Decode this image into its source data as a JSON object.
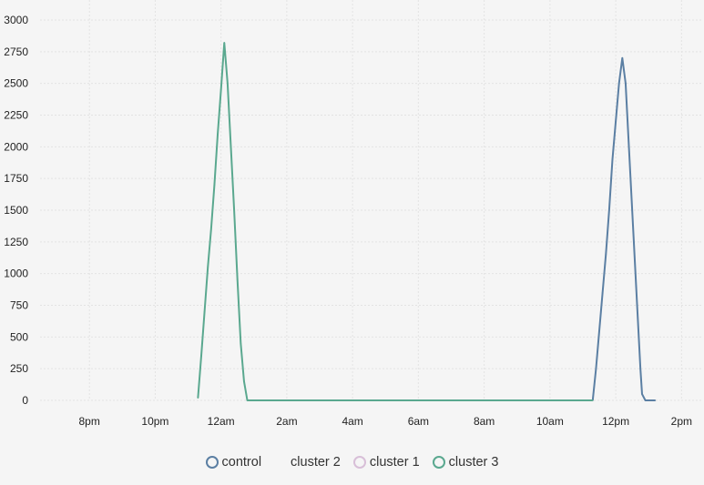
{
  "chart_data": {
    "type": "line",
    "title": "",
    "xlabel": "",
    "ylabel": "",
    "x_unit": "hour",
    "xlim": [
      18.5,
      38.6
    ],
    "ylim": [
      0,
      3000
    ],
    "grid": true,
    "legend_position": "bottom",
    "y_ticks": [
      0,
      250,
      500,
      750,
      1000,
      1250,
      1500,
      1750,
      2000,
      2250,
      2500,
      2750,
      3000
    ],
    "x_ticks": [
      {
        "value": 20,
        "label": "8pm"
      },
      {
        "value": 22,
        "label": "10pm"
      },
      {
        "value": 24,
        "label": "12am"
      },
      {
        "value": 26,
        "label": "2am"
      },
      {
        "value": 28,
        "label": "4am"
      },
      {
        "value": 30,
        "label": "6am"
      },
      {
        "value": 32,
        "label": "8am"
      },
      {
        "value": 34,
        "label": "10am"
      },
      {
        "value": 36,
        "label": "12pm"
      },
      {
        "value": 38,
        "label": "2pm"
      }
    ],
    "series": [
      {
        "name": "control",
        "color": "#5b7fa3",
        "points": [
          [
            35.3,
            0
          ],
          [
            35.4,
            250
          ],
          [
            35.5,
            550
          ],
          [
            35.6,
            850
          ],
          [
            35.7,
            1150
          ],
          [
            35.8,
            1500
          ],
          [
            35.9,
            1900
          ],
          [
            36.0,
            2200
          ],
          [
            36.1,
            2500
          ],
          [
            36.2,
            2700
          ],
          [
            36.3,
            2500
          ],
          [
            36.4,
            2000
          ],
          [
            36.5,
            1500
          ],
          [
            36.6,
            1000
          ],
          [
            36.7,
            500
          ],
          [
            36.75,
            250
          ],
          [
            36.8,
            50
          ],
          [
            36.9,
            0
          ],
          [
            37.2,
            0
          ]
        ]
      },
      {
        "name": "cluster 2",
        "color": "#8a8a8a",
        "points": []
      },
      {
        "name": "cluster 1",
        "color": "#d8bfd8",
        "points": []
      },
      {
        "name": "cluster 3",
        "color": "#5aa88f",
        "points": [
          [
            23.3,
            20
          ],
          [
            23.4,
            350
          ],
          [
            23.5,
            700
          ],
          [
            23.6,
            1050
          ],
          [
            23.7,
            1350
          ],
          [
            23.8,
            1700
          ],
          [
            23.9,
            2100
          ],
          [
            24.0,
            2450
          ],
          [
            24.1,
            2820
          ],
          [
            24.2,
            2500
          ],
          [
            24.3,
            2000
          ],
          [
            24.4,
            1500
          ],
          [
            24.5,
            950
          ],
          [
            24.6,
            450
          ],
          [
            24.7,
            150
          ],
          [
            24.8,
            0
          ],
          [
            35.3,
            0
          ]
        ]
      }
    ]
  }
}
